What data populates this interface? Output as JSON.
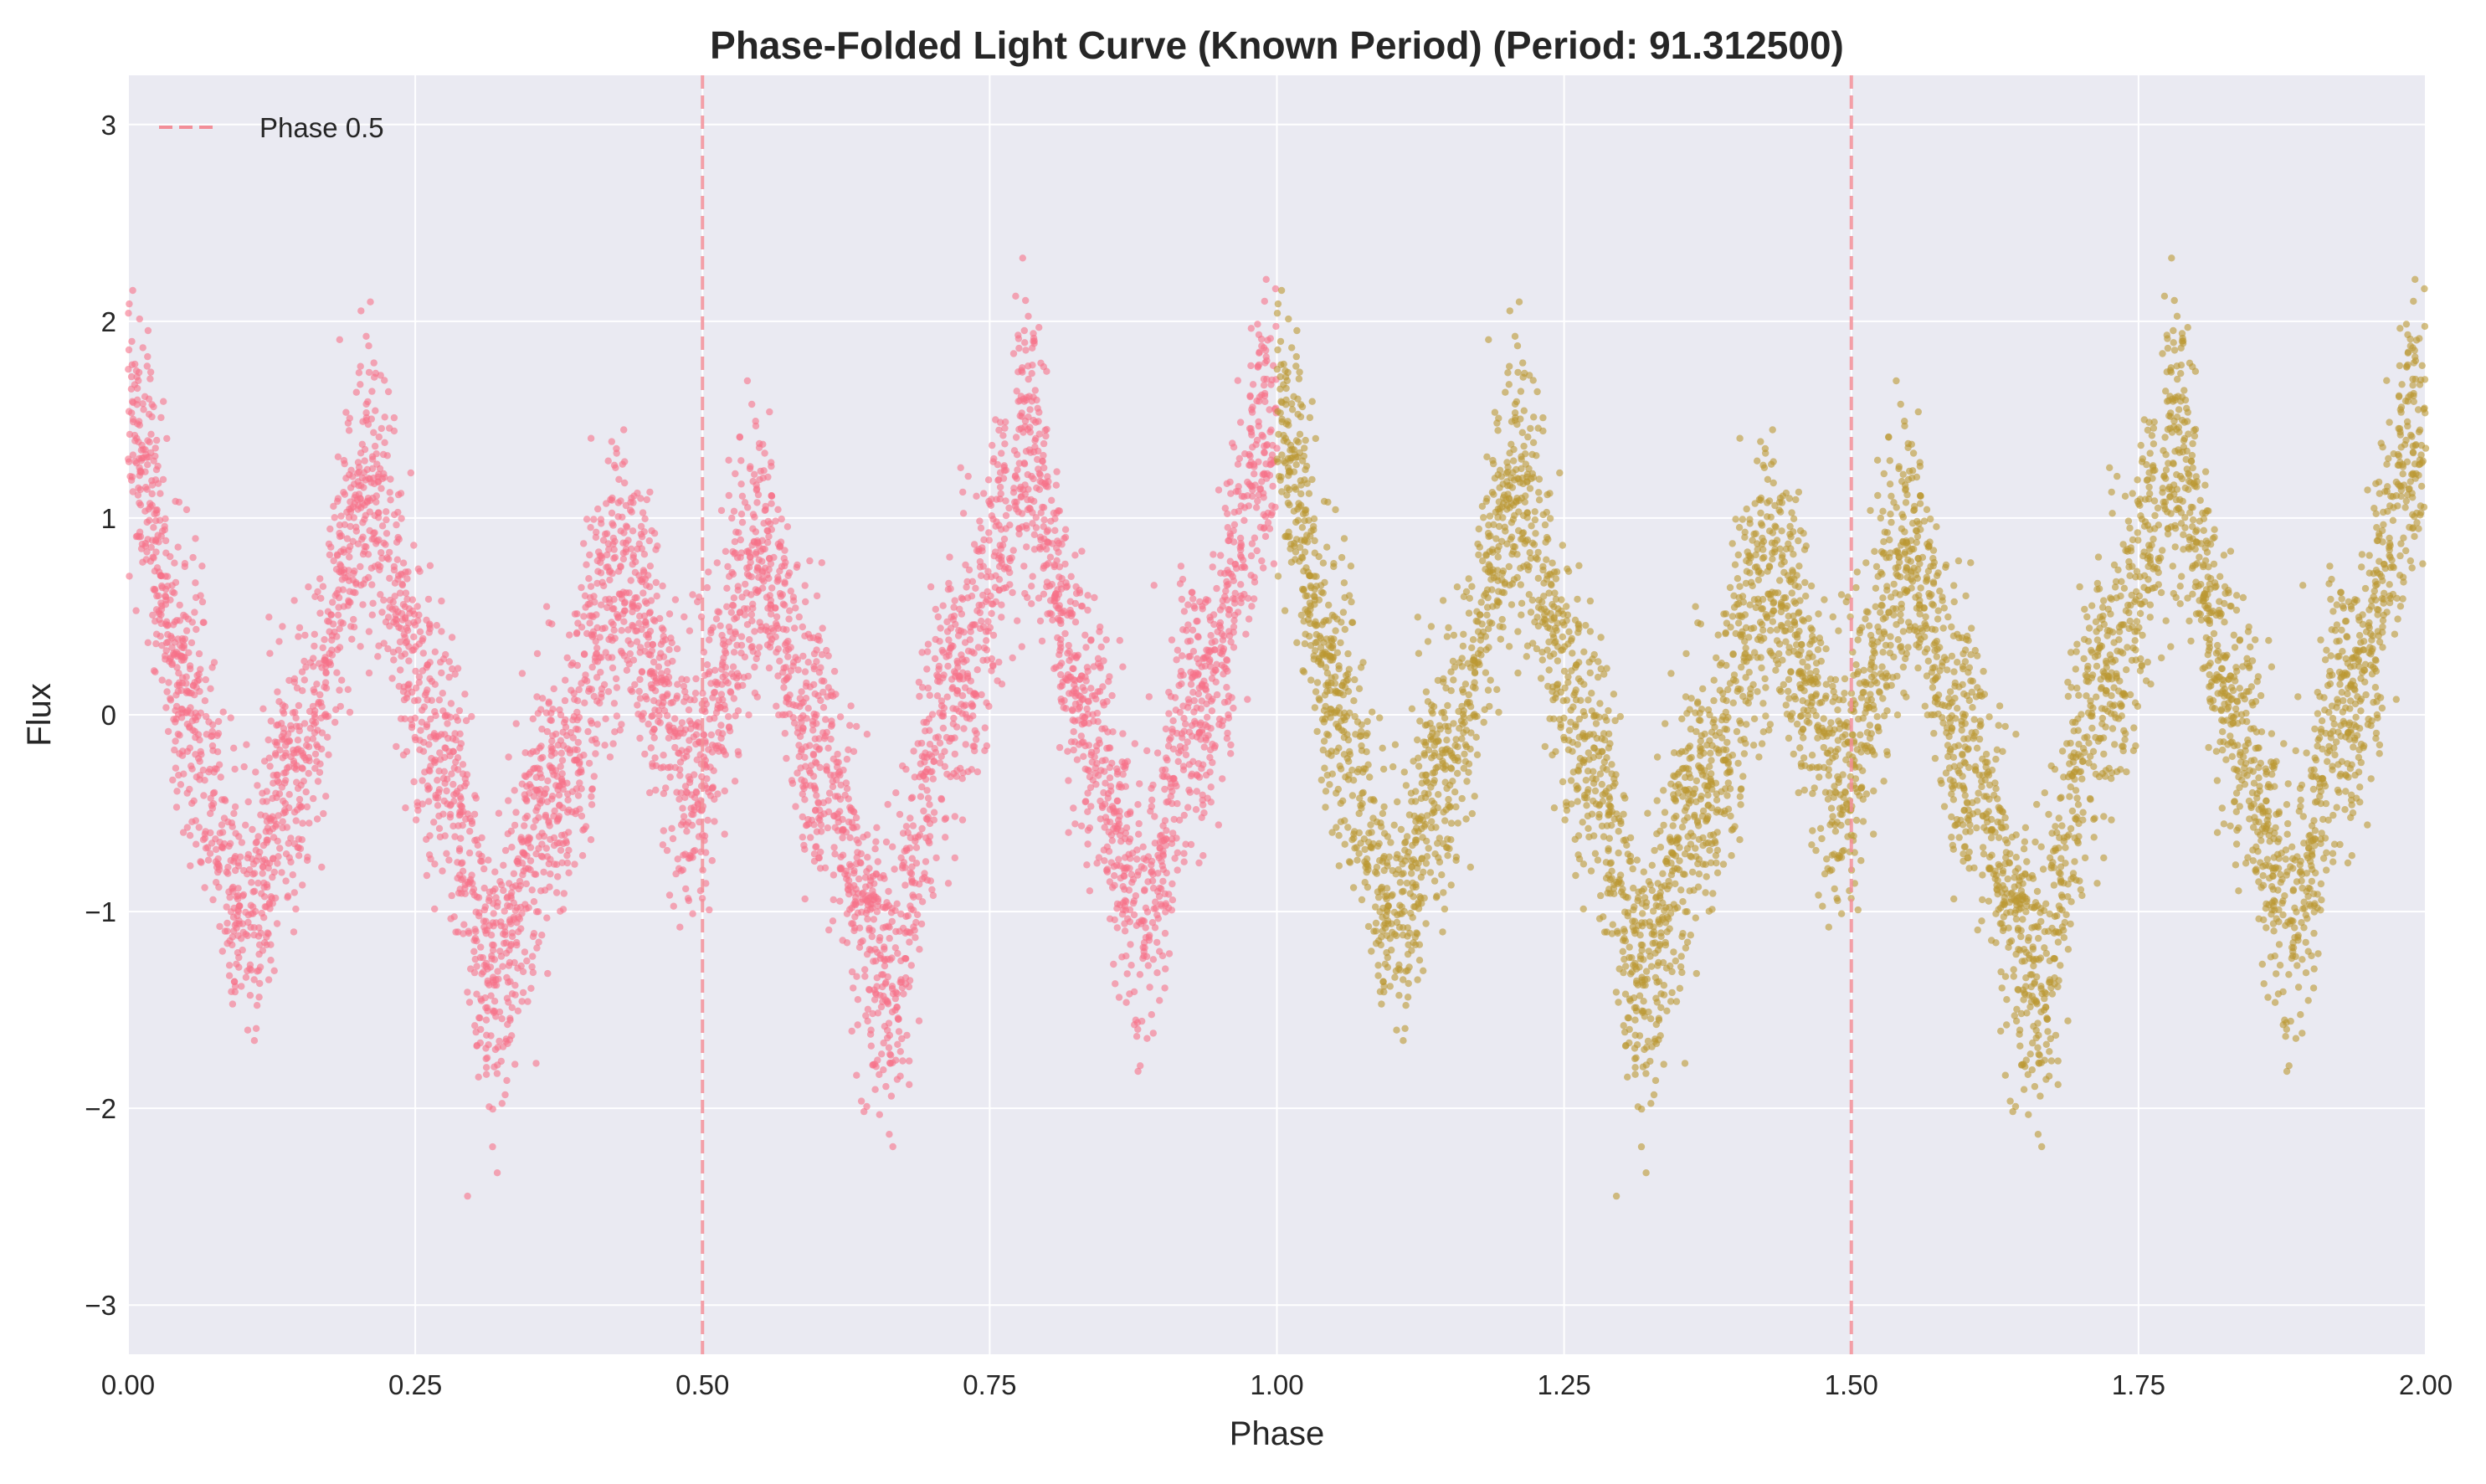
{
  "chart_data": {
    "type": "scatter",
    "title": "Phase-Folded Light Curve (Known Period) (Period: 91.312500)",
    "xlabel": "Phase",
    "ylabel": "Flux",
    "xlim": [
      0.0,
      2.0
    ],
    "ylim": [
      -3.25,
      3.25
    ],
    "x_ticks": [
      "0.00",
      "0.25",
      "0.50",
      "0.75",
      "1.00",
      "1.25",
      "1.50",
      "1.75",
      "2.00"
    ],
    "y_ticks": [
      "−3",
      "−2",
      "−1",
      "0",
      "1",
      "2",
      "3"
    ],
    "grid": true,
    "background": "#eaeaf2",
    "legend": {
      "position": "top-left",
      "entries": [
        {
          "label": "Phase 0.5",
          "style": "dashed",
          "color": "#f28e98"
        }
      ]
    },
    "reference_lines": [
      {
        "x": 0.5,
        "style": "dashed",
        "color": "#f28e98"
      },
      {
        "x": 1.5,
        "style": "dashed",
        "color": "#f28e98"
      }
    ],
    "series": [
      {
        "phase_range": [
          0.0,
          1.0
        ],
        "color": "#f77189",
        "point_count_approx": 5000
      },
      {
        "phase_range": [
          1.0,
          2.0
        ],
        "color": "#bb9832",
        "point_count_approx": 5000,
        "note": "repeat of phase 0–1 shifted by +1"
      }
    ],
    "model_envelope": {
      "description": "Sum of sinusoids plus noise; key anchor values read from plot",
      "anchors": [
        {
          "x": 0.0,
          "y": 1.5
        },
        {
          "x": 0.05,
          "y": 0.1
        },
        {
          "x": 0.1,
          "y": -1.0
        },
        {
          "x": 0.15,
          "y": -0.2
        },
        {
          "x": 0.21,
          "y": 1.2
        },
        {
          "x": 0.27,
          "y": -0.2
        },
        {
          "x": 0.32,
          "y": -1.3
        },
        {
          "x": 0.37,
          "y": -0.4
        },
        {
          "x": 0.43,
          "y": 0.7
        },
        {
          "x": 0.49,
          "y": -0.3
        },
        {
          "x": 0.55,
          "y": 0.8
        },
        {
          "x": 0.6,
          "y": -0.2
        },
        {
          "x": 0.66,
          "y": -1.3
        },
        {
          "x": 0.72,
          "y": 0.2
        },
        {
          "x": 0.78,
          "y": 1.3
        },
        {
          "x": 0.84,
          "y": -0.1
        },
        {
          "x": 0.88,
          "y": -1.0
        },
        {
          "x": 0.93,
          "y": 0.0
        },
        {
          "x": 1.0,
          "y": 1.5
        }
      ],
      "noise_std": 0.35
    }
  }
}
